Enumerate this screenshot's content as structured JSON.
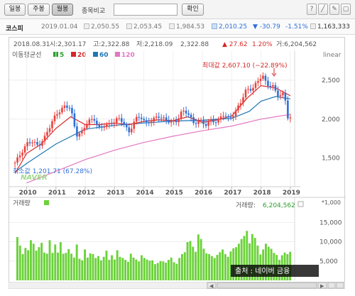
{
  "toolbar": {
    "tabs": [
      "일봉",
      "주봉",
      "월봉"
    ],
    "active_tab": 2,
    "compare_label": "종목비교",
    "confirm_label": "확인"
  },
  "quote": {
    "name": "코스피",
    "date": "2019.01.04",
    "open": "2,050.55",
    "high": "2,053.45",
    "low": "1,984.53",
    "close": "2,010.25",
    "change": "▼ -30.79",
    "change_pct": "-1.51%",
    "volume": "1,163,333"
  },
  "info_line": {
    "date": "2018.08.31",
    "open": "시:2,301.17",
    "high": "고:2,322.88",
    "low": "저:2,218.09",
    "close": "2,322.88",
    "change": "▲ 27.62",
    "change_pct": "1.20%",
    "volume": "거:6,204,562"
  },
  "legend": {
    "title": "이동평균선",
    "items": [
      {
        "label": "5",
        "color": "#2ca02c"
      },
      {
        "label": "20",
        "color": "#d62728"
      },
      {
        "label": "60",
        "color": "#1f77b4"
      },
      {
        "label": "120",
        "color": "#e377c2"
      }
    ]
  },
  "scale_label": "linear",
  "max_annotation": "최대값 2,607.10 (−22.89%)",
  "min_annotation": "최소값 1,201.71 (67.28%)",
  "watermark": "NAVER",
  "volume_panel": {
    "title": "거래량",
    "unit": "*1,000",
    "current_label": "거래량:",
    "current_value": "6,204,562"
  },
  "source_caption": "출처 : 네이버 금융",
  "colors": {
    "up": "#e8433f",
    "down": "#2f6fd6",
    "volume": "#6bd23a",
    "ma5": "#2ca02c",
    "ma20": "#d62728",
    "ma60": "#1f77b4",
    "ma120": "#e377c2"
  },
  "chart_data": {
    "type": "candlestick",
    "x_ticks": [
      "2010",
      "2011",
      "2012",
      "2013",
      "2014",
      "2015",
      "2016",
      "2017",
      "2018",
      "2019"
    ],
    "y_ticks": [
      1500,
      2000,
      2500
    ],
    "ylim": [
      1150,
      2700
    ],
    "volume_ticks": [
      5000,
      10000,
      15000
    ],
    "volume_ylim": [
      0,
      18000
    ],
    "x_range": [
      2009.55,
      2019.1
    ],
    "closes": [
      {
        "x": 2009.6,
        "y": 1430
      },
      {
        "x": 2009.8,
        "y": 1560
      },
      {
        "x": 2010.0,
        "y": 1690
      },
      {
        "x": 2010.2,
        "y": 1700
      },
      {
        "x": 2010.4,
        "y": 1660
      },
      {
        "x": 2010.6,
        "y": 1760
      },
      {
        "x": 2010.8,
        "y": 1900
      },
      {
        "x": 2011.0,
        "y": 2070
      },
      {
        "x": 2011.3,
        "y": 2160
      },
      {
        "x": 2011.5,
        "y": 2140
      },
      {
        "x": 2011.7,
        "y": 1800
      },
      {
        "x": 2011.9,
        "y": 1830
      },
      {
        "x": 2012.1,
        "y": 1980
      },
      {
        "x": 2012.3,
        "y": 2010
      },
      {
        "x": 2012.5,
        "y": 1860
      },
      {
        "x": 2012.7,
        "y": 1930
      },
      {
        "x": 2012.9,
        "y": 1950
      },
      {
        "x": 2013.1,
        "y": 2000
      },
      {
        "x": 2013.3,
        "y": 1960
      },
      {
        "x": 2013.5,
        "y": 1830
      },
      {
        "x": 2013.7,
        "y": 1990
      },
      {
        "x": 2013.9,
        "y": 2030
      },
      {
        "x": 2014.1,
        "y": 1950
      },
      {
        "x": 2014.3,
        "y": 1980
      },
      {
        "x": 2014.5,
        "y": 2040
      },
      {
        "x": 2014.7,
        "y": 2010
      },
      {
        "x": 2014.9,
        "y": 1950
      },
      {
        "x": 2015.1,
        "y": 1970
      },
      {
        "x": 2015.3,
        "y": 2110
      },
      {
        "x": 2015.5,
        "y": 2070
      },
      {
        "x": 2015.7,
        "y": 1950
      },
      {
        "x": 2015.9,
        "y": 1990
      },
      {
        "x": 2016.1,
        "y": 1910
      },
      {
        "x": 2016.3,
        "y": 1990
      },
      {
        "x": 2016.5,
        "y": 1970
      },
      {
        "x": 2016.7,
        "y": 2050
      },
      {
        "x": 2016.9,
        "y": 2010
      },
      {
        "x": 2017.1,
        "y": 2080
      },
      {
        "x": 2017.3,
        "y": 2200
      },
      {
        "x": 2017.5,
        "y": 2390
      },
      {
        "x": 2017.7,
        "y": 2390
      },
      {
        "x": 2017.9,
        "y": 2480
      },
      {
        "x": 2018.05,
        "y": 2570
      },
      {
        "x": 2018.2,
        "y": 2450
      },
      {
        "x": 2018.4,
        "y": 2420
      },
      {
        "x": 2018.55,
        "y": 2300
      },
      {
        "x": 2018.7,
        "y": 2323
      },
      {
        "x": 2018.8,
        "y": 2340
      },
      {
        "x": 2018.9,
        "y": 2030
      },
      {
        "x": 2019.0,
        "y": 2010
      }
    ],
    "max_point": {
      "x": 2018.05,
      "y": 2607.1
    },
    "min_point": {
      "x": 2009.6,
      "y": 1201.71
    },
    "ma20": [
      {
        "x": 2009.6,
        "y": 1300
      },
      {
        "x": 2010.0,
        "y": 1560
      },
      {
        "x": 2010.5,
        "y": 1680
      },
      {
        "x": 2011.0,
        "y": 1880
      },
      {
        "x": 2011.5,
        "y": 2030
      },
      {
        "x": 2012.0,
        "y": 1930
      },
      {
        "x": 2012.5,
        "y": 1930
      },
      {
        "x": 2013.0,
        "y": 1950
      },
      {
        "x": 2013.5,
        "y": 1930
      },
      {
        "x": 2014.0,
        "y": 1970
      },
      {
        "x": 2014.5,
        "y": 1990
      },
      {
        "x": 2015.0,
        "y": 1980
      },
      {
        "x": 2015.5,
        "y": 2030
      },
      {
        "x": 2016.0,
        "y": 1960
      },
      {
        "x": 2016.5,
        "y": 1990
      },
      {
        "x": 2017.0,
        "y": 2040
      },
      {
        "x": 2017.5,
        "y": 2260
      },
      {
        "x": 2018.0,
        "y": 2430
      },
      {
        "x": 2018.5,
        "y": 2400
      },
      {
        "x": 2019.0,
        "y": 2300
      }
    ],
    "ma60": [
      {
        "x": 2009.6,
        "y": 1320
      },
      {
        "x": 2010.0,
        "y": 1430
      },
      {
        "x": 2011.0,
        "y": 1680
      },
      {
        "x": 2012.0,
        "y": 1870
      },
      {
        "x": 2013.0,
        "y": 1920
      },
      {
        "x": 2014.0,
        "y": 1950
      },
      {
        "x": 2015.0,
        "y": 1975
      },
      {
        "x": 2016.0,
        "y": 1985
      },
      {
        "x": 2017.0,
        "y": 2010
      },
      {
        "x": 2017.6,
        "y": 2100
      },
      {
        "x": 2018.0,
        "y": 2230
      },
      {
        "x": 2018.5,
        "y": 2290
      },
      {
        "x": 2019.0,
        "y": 2260
      }
    ],
    "ma120": [
      {
        "x": 2010.0,
        "y": 1180
      },
      {
        "x": 2011.0,
        "y": 1330
      },
      {
        "x": 2012.0,
        "y": 1480
      },
      {
        "x": 2013.0,
        "y": 1600
      },
      {
        "x": 2014.0,
        "y": 1700
      },
      {
        "x": 2015.0,
        "y": 1780
      },
      {
        "x": 2016.0,
        "y": 1850
      },
      {
        "x": 2017.0,
        "y": 1910
      },
      {
        "x": 2018.0,
        "y": 2000
      },
      {
        "x": 2019.0,
        "y": 2060
      }
    ],
    "volume_values": [
      11200,
      9000,
      6800,
      8400,
      7800,
      10400,
      9500,
      7700,
      8600,
      9700,
      7200,
      6900,
      10400,
      7100,
      9300,
      7200,
      9900,
      6900,
      7100,
      8100,
      6900,
      5900,
      9300,
      5600,
      5200,
      8000,
      5900,
      7000,
      6800,
      5800,
      6300,
      5200,
      6100,
      7700,
      5300,
      6500,
      5400,
      7800,
      6100,
      5800,
      5300,
      4800,
      6900,
      5900,
      5400,
      4900,
      6500,
      5800,
      5400,
      5100,
      5200,
      4200,
      4500,
      5000,
      4900,
      4600,
      5300,
      5900,
      4700,
      4300,
      5800,
      6800,
      7300,
      9900,
      10200,
      8700,
      7400,
      11900,
      10700,
      8200,
      7000,
      6800,
      6300,
      5800,
      6600,
      7300,
      8000,
      6800,
      6100,
      7500,
      8300,
      8600,
      9500,
      10700,
      11500,
      12800,
      9600,
      12000,
      11000,
      9000,
      6700,
      8000,
      9500,
      8700,
      8200,
      7100,
      6600,
      5300,
      6500,
      7200,
      6800,
      7400
    ]
  }
}
